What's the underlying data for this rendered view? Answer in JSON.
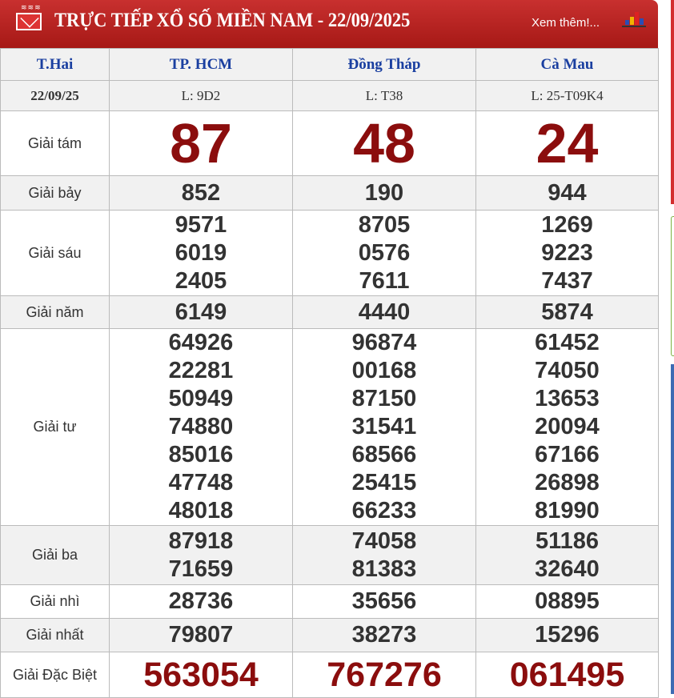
{
  "header": {
    "title": "TRỰC TIẾP XỔ SỐ MIỀN NAM - 22/09/2025",
    "more_link": "Xem thêm!..."
  },
  "table": {
    "columns": [
      "T.Hai",
      "TP. HCM",
      "Đồng Tháp",
      "Cà Mau"
    ],
    "date": "22/09/25",
    "tickets": [
      "L: 9D2",
      "L: T38",
      "L: 25-T09K4"
    ],
    "prizes": [
      {
        "label": "Giải tám",
        "values": [
          [
            "87"
          ],
          [
            "48"
          ],
          [
            "24"
          ]
        ]
      },
      {
        "label": "Giải bảy",
        "values": [
          [
            "852"
          ],
          [
            "190"
          ],
          [
            "944"
          ]
        ]
      },
      {
        "label": "Giải sáu",
        "values": [
          [
            "9571",
            "6019",
            "2405"
          ],
          [
            "8705",
            "0576",
            "7611"
          ],
          [
            "1269",
            "9223",
            "7437"
          ]
        ]
      },
      {
        "label": "Giải năm",
        "values": [
          [
            "6149"
          ],
          [
            "4440"
          ],
          [
            "5874"
          ]
        ]
      },
      {
        "label": "Giải tư",
        "values": [
          [
            "64926",
            "22281",
            "50949",
            "74880",
            "85016",
            "47748",
            "48018"
          ],
          [
            "96874",
            "00168",
            "87150",
            "31541",
            "68566",
            "25415",
            "66233"
          ],
          [
            "61452",
            "74050",
            "13653",
            "20094",
            "67166",
            "26898",
            "81990"
          ]
        ]
      },
      {
        "label": "Giải ba",
        "values": [
          [
            "87918",
            "71659"
          ],
          [
            "74058",
            "81383"
          ],
          [
            "51186",
            "32640"
          ]
        ]
      },
      {
        "label": "Giải nhì",
        "values": [
          [
            "28736"
          ],
          [
            "35656"
          ],
          [
            "08895"
          ]
        ]
      },
      {
        "label": "Giải nhất",
        "values": [
          [
            "79807"
          ],
          [
            "38273"
          ],
          [
            "15296"
          ]
        ]
      },
      {
        "label": "Giải Đặc Biệt",
        "values": [
          [
            "563054"
          ],
          [
            "767276"
          ],
          [
            "061495"
          ]
        ]
      }
    ]
  },
  "colors": {
    "header_red": "#b2201e",
    "prize_red": "#8b0d0d",
    "column_blue": "#1a3fa0"
  }
}
